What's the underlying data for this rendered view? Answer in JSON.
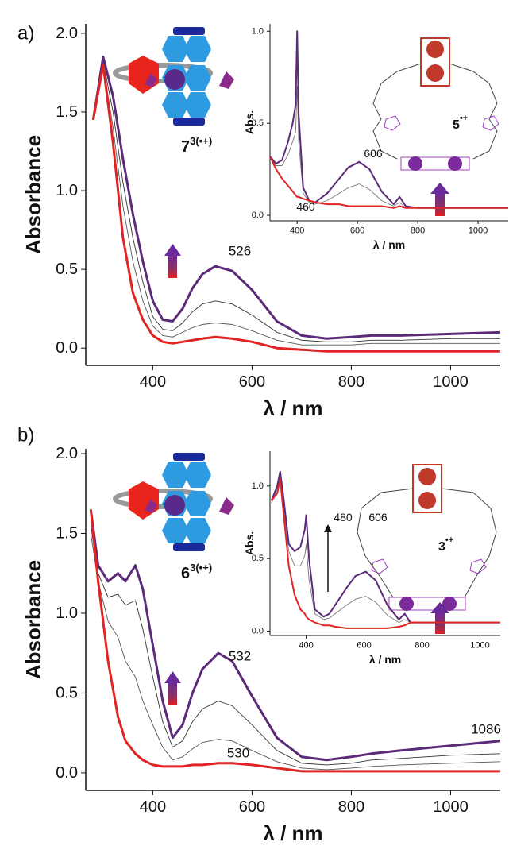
{
  "chart_data": [
    {
      "type": "line",
      "panel_label": "a)",
      "xlabel": "λ / nm",
      "ylabel": "Absorbance",
      "molecule_label": "7",
      "molecule_sup": "3(•+)",
      "annotations": [
        "526"
      ],
      "xlim": [
        265,
        1100
      ],
      "ylim": [
        -0.11,
        2.06
      ],
      "xticks": [
        400,
        600,
        800,
        1000
      ],
      "yticks": [
        {
          "value": 0,
          "label": "0.0"
        },
        0.5,
        {
          "value": 1,
          "label": "1.0"
        },
        1.5,
        {
          "value": 2,
          "label": "2.0"
        }
      ],
      "x": [
        280,
        300,
        320,
        340,
        360,
        380,
        400,
        420,
        440,
        460,
        480,
        500,
        526,
        560,
        600,
        650,
        700,
        750,
        800,
        840,
        900,
        1000,
        1100
      ],
      "series": [
        {
          "color": "#555555",
          "values": [
            1.45,
            1.8,
            1.4,
            0.9,
            0.55,
            0.3,
            0.14,
            0.08,
            0.07,
            0.1,
            0.13,
            0.15,
            0.16,
            0.15,
            0.11,
            0.05,
            0.02,
            0.02,
            0.02,
            0.03,
            0.03,
            0.03,
            0.03
          ]
        },
        {
          "color": "#333333",
          "values": [
            1.45,
            1.82,
            1.5,
            1.05,
            0.7,
            0.42,
            0.2,
            0.12,
            0.11,
            0.16,
            0.23,
            0.28,
            0.3,
            0.28,
            0.21,
            0.1,
            0.05,
            0.04,
            0.04,
            0.05,
            0.05,
            0.06,
            0.06
          ]
        },
        {
          "color": "#5b2a78",
          "values": [
            1.45,
            1.85,
            1.6,
            1.2,
            0.85,
            0.55,
            0.3,
            0.18,
            0.17,
            0.25,
            0.38,
            0.47,
            0.52,
            0.49,
            0.37,
            0.17,
            0.08,
            0.06,
            0.07,
            0.08,
            0.08,
            0.09,
            0.1
          ]
        },
        {
          "color": "#e02424",
          "values": [
            1.45,
            1.8,
            1.3,
            0.7,
            0.35,
            0.18,
            0.08,
            0.04,
            0.03,
            0.04,
            0.05,
            0.06,
            0.07,
            0.06,
            0.04,
            0.0,
            -0.01,
            -0.02,
            -0.02,
            -0.02,
            -0.02,
            -0.02,
            -0.02
          ]
        }
      ]
    },
    {
      "type": "line",
      "xlabel": "λ / nm",
      "ylabel": "Abs.",
      "molecule_label": "5",
      "molecule_sup": "•+",
      "annotations": [
        "606",
        "460"
      ],
      "xlim": [
        310,
        1100
      ],
      "ylim": [
        -0.03,
        1.04
      ],
      "xticks": [
        400,
        600,
        800,
        1000
      ],
      "yticks": [
        {
          "value": 0,
          "label": "0.0"
        },
        0.5,
        {
          "value": 1,
          "label": "1.0"
        }
      ],
      "x": [
        310,
        330,
        350,
        370,
        385,
        395,
        400,
        405,
        420,
        440,
        460,
        500,
        540,
        570,
        606,
        640,
        680,
        720,
        740,
        760,
        800,
        900,
        1000,
        1100
      ],
      "series": [
        {
          "color": "#777777",
          "values": [
            0.32,
            0.27,
            0.27,
            0.33,
            0.4,
            0.45,
            0.7,
            0.4,
            0.12,
            0.07,
            0.06,
            0.08,
            0.12,
            0.15,
            0.17,
            0.14,
            0.08,
            0.05,
            0.07,
            0.04,
            0.04,
            0.04,
            0.04,
            0.04
          ]
        },
        {
          "color": "#5b2a78",
          "values": [
            0.32,
            0.28,
            0.3,
            0.4,
            0.5,
            0.6,
            1.0,
            0.55,
            0.15,
            0.08,
            0.07,
            0.12,
            0.2,
            0.26,
            0.29,
            0.25,
            0.13,
            0.06,
            0.1,
            0.05,
            0.04,
            0.04,
            0.04,
            0.04
          ]
        },
        {
          "color": "#e02424",
          "values": [
            0.32,
            0.25,
            0.2,
            0.16,
            0.13,
            0.11,
            0.1,
            0.1,
            0.09,
            0.08,
            0.07,
            0.06,
            0.06,
            0.05,
            0.05,
            0.05,
            0.05,
            0.04,
            0.05,
            0.04,
            0.04,
            0.04,
            0.04,
            0.04
          ]
        }
      ]
    },
    {
      "type": "line",
      "panel_label": "b)",
      "xlabel": "λ / nm",
      "ylabel": "Absorbance",
      "molecule_label": "6",
      "molecule_sup": "3(•+)",
      "annotations": [
        "532",
        "530",
        "1086"
      ],
      "xlim": [
        265,
        1100
      ],
      "ylim": [
        -0.11,
        2.03
      ],
      "xticks": [
        400,
        600,
        800,
        1000
      ],
      "yticks": [
        {
          "value": 0,
          "label": "0.0"
        },
        0.5,
        {
          "value": 1,
          "label": "1.0"
        },
        1.5,
        {
          "value": 2,
          "label": "2.0"
        }
      ],
      "x": [
        275,
        290,
        310,
        330,
        345,
        365,
        380,
        400,
        420,
        440,
        460,
        480,
        500,
        532,
        560,
        600,
        650,
        700,
        750,
        800,
        840,
        900,
        1000,
        1100
      ],
      "series": [
        {
          "color": "#555555",
          "values": [
            1.5,
            1.2,
            0.95,
            0.85,
            0.7,
            0.6,
            0.45,
            0.3,
            0.16,
            0.08,
            0.1,
            0.15,
            0.19,
            0.21,
            0.2,
            0.14,
            0.07,
            0.03,
            0.02,
            0.03,
            0.04,
            0.05,
            0.06,
            0.07
          ]
        },
        {
          "color": "#333333",
          "values": [
            1.55,
            1.25,
            1.1,
            1.12,
            1.05,
            1.08,
            0.9,
            0.6,
            0.32,
            0.16,
            0.2,
            0.32,
            0.4,
            0.45,
            0.42,
            0.3,
            0.14,
            0.06,
            0.05,
            0.06,
            0.08,
            0.09,
            0.11,
            0.12
          ]
        },
        {
          "color": "#5b2a78",
          "values": [
            1.65,
            1.3,
            1.2,
            1.25,
            1.2,
            1.3,
            1.15,
            0.8,
            0.45,
            0.22,
            0.3,
            0.5,
            0.65,
            0.75,
            0.7,
            0.48,
            0.22,
            0.1,
            0.08,
            0.1,
            0.12,
            0.14,
            0.17,
            0.2
          ]
        },
        {
          "color": "#e02424",
          "values": [
            1.65,
            1.2,
            0.7,
            0.35,
            0.2,
            0.12,
            0.08,
            0.05,
            0.04,
            0.04,
            0.04,
            0.05,
            0.05,
            0.06,
            0.06,
            0.05,
            0.03,
            0.01,
            0.01,
            0.01,
            0.01,
            0.01,
            0.01,
            0.01
          ]
        }
      ]
    },
    {
      "type": "line",
      "xlabel": "λ / nm",
      "ylabel": "Abs.",
      "molecule_label": "3",
      "molecule_sup": "•+",
      "annotations": [
        "480",
        "606"
      ],
      "xlim": [
        275,
        1070
      ],
      "ylim": [
        -0.03,
        1.24
      ],
      "xticks": [
        400,
        600,
        800,
        1000
      ],
      "yticks": [
        {
          "value": 0,
          "label": "0.0"
        },
        0.5,
        {
          "value": 1,
          "label": "1.0"
        }
      ],
      "x": [
        280,
        300,
        310,
        320,
        340,
        360,
        380,
        395,
        400,
        410,
        430,
        460,
        480,
        500,
        540,
        570,
        606,
        640,
        680,
        720,
        740,
        760,
        800,
        900,
        1000,
        1070
      ],
      "series": [
        {
          "color": "#777777",
          "values": [
            0.88,
            0.98,
            1.05,
            0.9,
            0.55,
            0.45,
            0.45,
            0.52,
            0.6,
            0.35,
            0.12,
            0.08,
            0.09,
            0.12,
            0.18,
            0.22,
            0.24,
            0.2,
            0.11,
            0.06,
            0.08,
            0.06,
            0.06,
            0.06,
            0.06,
            0.06
          ]
        },
        {
          "color": "#5b2a78",
          "values": [
            0.9,
            1.0,
            1.1,
            0.95,
            0.6,
            0.55,
            0.58,
            0.7,
            0.8,
            0.5,
            0.15,
            0.1,
            0.12,
            0.18,
            0.3,
            0.38,
            0.41,
            0.35,
            0.18,
            0.08,
            0.12,
            0.06,
            0.06,
            0.06,
            0.06,
            0.06
          ]
        },
        {
          "color": "#e02424",
          "values": [
            0.9,
            0.95,
            1.05,
            0.85,
            0.45,
            0.25,
            0.15,
            0.12,
            0.1,
            0.08,
            0.06,
            0.04,
            0.04,
            0.03,
            0.02,
            0.02,
            0.02,
            0.02,
            0.02,
            0.03,
            0.04,
            0.06,
            0.06,
            0.06,
            0.06,
            0.06
          ]
        }
      ]
    }
  ]
}
